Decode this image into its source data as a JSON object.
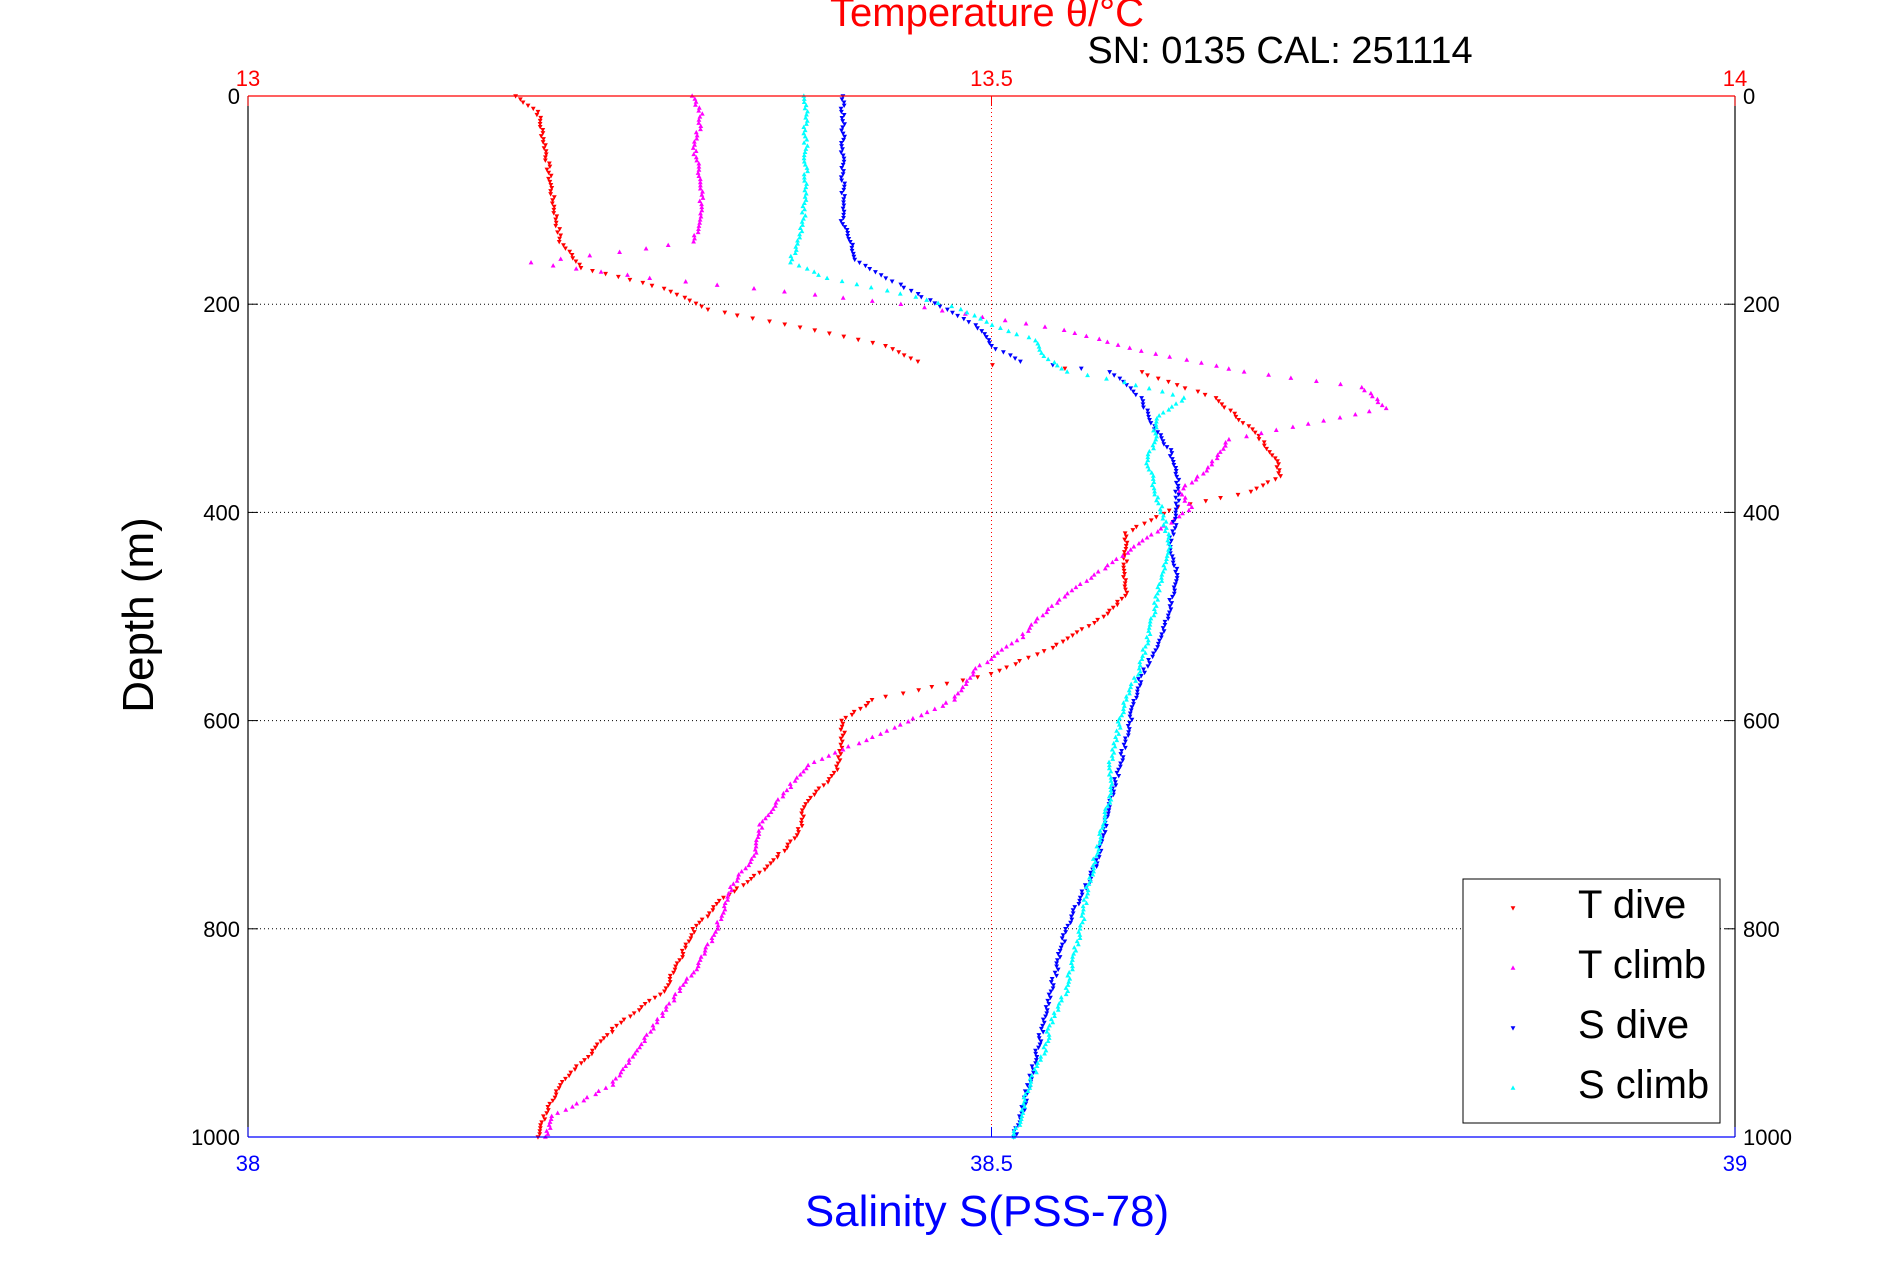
{
  "chart_data": {
    "type": "scatter",
    "title": "Temperature θ/°C",
    "subtitle": "SN: 0135  CAL: 251114",
    "ylabel": "Depth (m)",
    "xlabel_bottom": "Salinity S(PSS-78)",
    "x_bottom": {
      "lim": [
        38,
        39
      ],
      "ticks": [
        "38",
        "38.5",
        "39"
      ],
      "color": "#0000ff"
    },
    "x_top": {
      "lim": [
        13,
        14
      ],
      "ticks": [
        "13",
        "13.5",
        "14"
      ],
      "color": "#ff0000"
    },
    "y": {
      "lim": [
        0,
        1000
      ],
      "reversed": true,
      "ticks": [
        "0",
        "200",
        "400",
        "600",
        "800",
        "1000"
      ]
    },
    "grid": true,
    "legend_position": "bottom-right",
    "series": [
      {
        "name": "T dive",
        "axis": "top",
        "color": "#ff0000",
        "marker": "triangle-down",
        "points": [
          [
            13.18,
            0
          ],
          [
            13.195,
            15
          ],
          [
            13.2,
            50
          ],
          [
            13.205,
            100
          ],
          [
            13.21,
            140
          ],
          [
            13.225,
            165
          ],
          [
            13.28,
            185
          ],
          [
            13.31,
            205
          ],
          [
            13.38,
            225
          ],
          [
            13.43,
            240
          ],
          [
            13.45,
            255
          ],
          [
            13.6,
            265
          ],
          [
            13.65,
            290
          ],
          [
            13.675,
            320
          ],
          [
            13.69,
            345
          ],
          [
            13.695,
            365
          ],
          [
            13.675,
            380
          ],
          [
            13.625,
            395
          ],
          [
            13.59,
            420
          ],
          [
            13.59,
            450
          ],
          [
            13.59,
            480
          ],
          [
            13.575,
            500
          ],
          [
            13.54,
            530
          ],
          [
            13.5,
            555
          ],
          [
            13.42,
            580
          ],
          [
            13.4,
            600
          ],
          [
            13.4,
            620
          ],
          [
            13.395,
            650
          ],
          [
            13.375,
            680
          ],
          [
            13.37,
            710
          ],
          [
            13.35,
            740
          ],
          [
            13.32,
            770
          ],
          [
            13.3,
            800
          ],
          [
            13.29,
            830
          ],
          [
            13.28,
            860
          ],
          [
            13.25,
            890
          ],
          [
            13.23,
            920
          ],
          [
            13.21,
            950
          ],
          [
            13.2,
            980
          ],
          [
            13.195,
            1000
          ]
        ]
      },
      {
        "name": "T climb",
        "axis": "top",
        "color": "#ff00ff",
        "marker": "triangle-up",
        "points": [
          [
            13.3,
            0
          ],
          [
            13.305,
            20
          ],
          [
            13.3,
            50
          ],
          [
            13.305,
            80
          ],
          [
            13.305,
            110
          ],
          [
            13.3,
            140
          ],
          [
            13.25,
            150
          ],
          [
            13.19,
            160
          ],
          [
            13.27,
            175
          ],
          [
            13.34,
            185
          ],
          [
            13.44,
            200
          ],
          [
            13.55,
            225
          ],
          [
            13.6,
            245
          ],
          [
            13.67,
            265
          ],
          [
            13.75,
            280
          ],
          [
            13.765,
            300
          ],
          [
            13.66,
            330
          ],
          [
            13.645,
            360
          ],
          [
            13.625,
            380
          ],
          [
            13.635,
            395
          ],
          [
            13.62,
            410
          ],
          [
            13.6,
            430
          ],
          [
            13.57,
            460
          ],
          [
            13.54,
            490
          ],
          [
            13.52,
            520
          ],
          [
            13.49,
            550
          ],
          [
            13.475,
            580
          ],
          [
            13.43,
            610
          ],
          [
            13.38,
            640
          ],
          [
            13.36,
            670
          ],
          [
            13.345,
            700
          ],
          [
            13.34,
            730
          ],
          [
            13.325,
            760
          ],
          [
            13.315,
            800
          ],
          [
            13.305,
            830
          ],
          [
            13.29,
            860
          ],
          [
            13.275,
            890
          ],
          [
            13.26,
            920
          ],
          [
            13.245,
            950
          ],
          [
            13.205,
            980
          ],
          [
            13.2,
            1000
          ]
        ]
      },
      {
        "name": "S dive",
        "axis": "bottom",
        "color": "#0000ff",
        "marker": "triangle-down",
        "points": [
          [
            38.4,
            0
          ],
          [
            38.4,
            30
          ],
          [
            38.4,
            60
          ],
          [
            38.4,
            90
          ],
          [
            38.4,
            120
          ],
          [
            38.405,
            140
          ],
          [
            38.41,
            160
          ],
          [
            38.43,
            175
          ],
          [
            38.45,
            190
          ],
          [
            38.47,
            205
          ],
          [
            38.49,
            220
          ],
          [
            38.5,
            240
          ],
          [
            38.52,
            255
          ],
          [
            38.58,
            265
          ],
          [
            38.6,
            290
          ],
          [
            38.61,
            320
          ],
          [
            38.62,
            340
          ],
          [
            38.625,
            360
          ],
          [
            38.625,
            380
          ],
          [
            38.625,
            400
          ],
          [
            38.62,
            430
          ],
          [
            38.625,
            460
          ],
          [
            38.62,
            490
          ],
          [
            38.615,
            520
          ],
          [
            38.6,
            560
          ],
          [
            38.595,
            590
          ],
          [
            38.59,
            620
          ],
          [
            38.585,
            650
          ],
          [
            38.58,
            680
          ],
          [
            38.575,
            710
          ],
          [
            38.57,
            740
          ],
          [
            38.56,
            770
          ],
          [
            38.55,
            800
          ],
          [
            38.545,
            830
          ],
          [
            38.54,
            860
          ],
          [
            38.535,
            890
          ],
          [
            38.53,
            920
          ],
          [
            38.525,
            950
          ],
          [
            38.52,
            980
          ],
          [
            38.515,
            1000
          ]
        ]
      },
      {
        "name": "S climb",
        "axis": "bottom",
        "color": "#00ffff",
        "marker": "triangle-up",
        "points": [
          [
            38.375,
            0
          ],
          [
            38.375,
            30
          ],
          [
            38.375,
            60
          ],
          [
            38.375,
            100
          ],
          [
            38.372,
            130
          ],
          [
            38.365,
            160
          ],
          [
            38.39,
            175
          ],
          [
            38.44,
            190
          ],
          [
            38.48,
            205
          ],
          [
            38.5,
            220
          ],
          [
            38.53,
            235
          ],
          [
            38.535,
            250
          ],
          [
            38.55,
            265
          ],
          [
            38.59,
            275
          ],
          [
            38.63,
            290
          ],
          [
            38.61,
            310
          ],
          [
            38.61,
            330
          ],
          [
            38.605,
            350
          ],
          [
            38.61,
            380
          ],
          [
            38.615,
            400
          ],
          [
            38.62,
            430
          ],
          [
            38.615,
            460
          ],
          [
            38.61,
            490
          ],
          [
            38.605,
            520
          ],
          [
            38.6,
            550
          ],
          [
            38.59,
            580
          ],
          [
            38.585,
            610
          ],
          [
            38.58,
            640
          ],
          [
            38.58,
            670
          ],
          [
            38.575,
            700
          ],
          [
            38.57,
            730
          ],
          [
            38.565,
            760
          ],
          [
            38.56,
            800
          ],
          [
            38.555,
            830
          ],
          [
            38.55,
            860
          ],
          [
            38.54,
            890
          ],
          [
            38.535,
            920
          ],
          [
            38.525,
            950
          ],
          [
            38.52,
            980
          ],
          [
            38.515,
            1000
          ]
        ]
      }
    ]
  }
}
